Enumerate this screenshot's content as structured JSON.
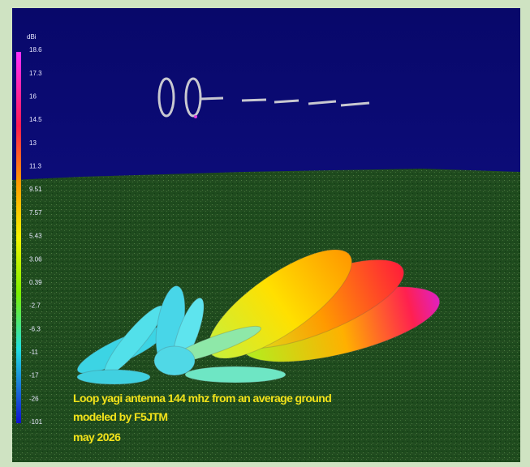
{
  "colorbar": {
    "unit": "dBi",
    "labels": [
      "18.6",
      "17.3",
      "16",
      "14.5",
      "13",
      "11.3",
      "9.51",
      "7.57",
      "5.43",
      "3.06",
      "0.39",
      "-2.7",
      "-6.3",
      "-11",
      "-17",
      "-26",
      "-101"
    ]
  },
  "caption": [
    "Loop yagi antenna 144 mhz from an average ground",
    "modeled by F5JTM",
    "may 2026"
  ]
}
